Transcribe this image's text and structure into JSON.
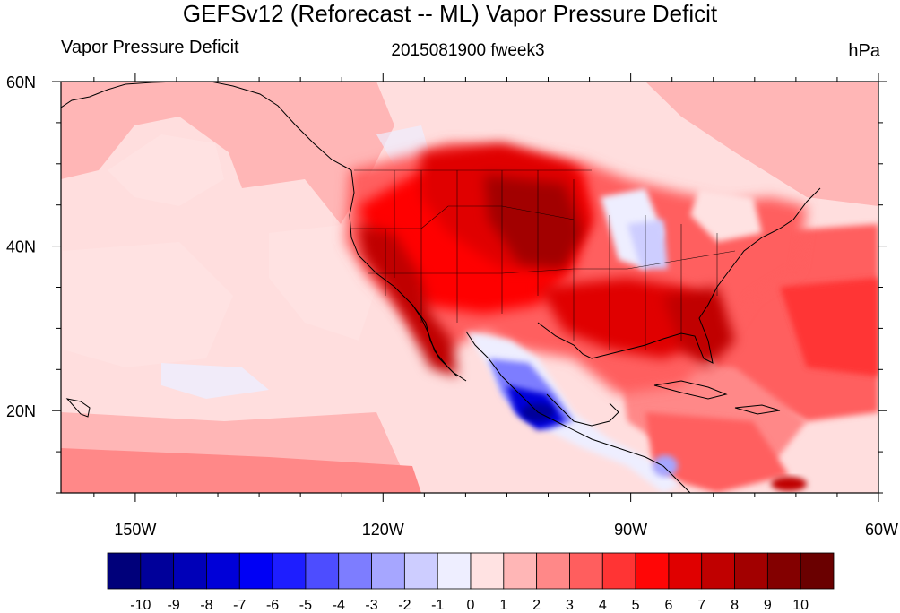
{
  "title": "GEFSv12 (Reforecast -- ML) Vapor Pressure Deficit",
  "subtitle_left": "Vapor Pressure Deficit",
  "subtitle_center": "2015081900 fweek3",
  "subtitle_right": "hPa",
  "map": {
    "projection": "cylindrical equidistant",
    "lon_range": [
      -159,
      -60
    ],
    "lat_range": [
      10,
      60
    ],
    "ocean_color": "#ffdede",
    "lat_ticks": [
      {
        "value": 60,
        "label": "60N"
      },
      {
        "value": 40,
        "label": "40N"
      },
      {
        "value": 20,
        "label": "20N"
      }
    ],
    "lon_ticks": [
      {
        "value": -150,
        "label": "150W"
      },
      {
        "value": -120,
        "label": "120W"
      },
      {
        "value": -90,
        "label": "90W"
      },
      {
        "value": -60,
        "label": "60W"
      }
    ],
    "field_regions": [
      {
        "name": "eastern-pacific-high-anomaly",
        "level": 3
      },
      {
        "name": "northern-plains-maximum",
        "level": 8
      },
      {
        "name": "southwest-us-maximum",
        "level": 8
      },
      {
        "name": "southeast-us",
        "level": 6
      },
      {
        "name": "western-atlantic",
        "level": 6
      },
      {
        "name": "caribbean",
        "level": 4
      },
      {
        "name": "ohio-valley-minimum",
        "level": -1
      },
      {
        "name": "mexico-minimum",
        "level": -10
      }
    ]
  },
  "colorbar": {
    "labels": [
      "-10",
      "-9",
      "-8",
      "-7",
      "-6",
      "-5",
      "-4",
      "-3",
      "-2",
      "-1",
      "0",
      "1",
      "2",
      "3",
      "4",
      "5",
      "6",
      "7",
      "8",
      "9",
      "10"
    ],
    "colors": [
      "#00007a",
      "#00009a",
      "#0000b8",
      "#0000d8",
      "#0000f5",
      "#1e1eff",
      "#4d4dff",
      "#7d7dff",
      "#a6a6ff",
      "#cdcdff",
      "#eeeeff",
      "#ffe2e2",
      "#ffb6b6",
      "#ff8888",
      "#ff5e5e",
      "#ff3434",
      "#ff0606",
      "#e00000",
      "#c00000",
      "#a20000",
      "#830000",
      "#6a0000"
    ]
  }
}
